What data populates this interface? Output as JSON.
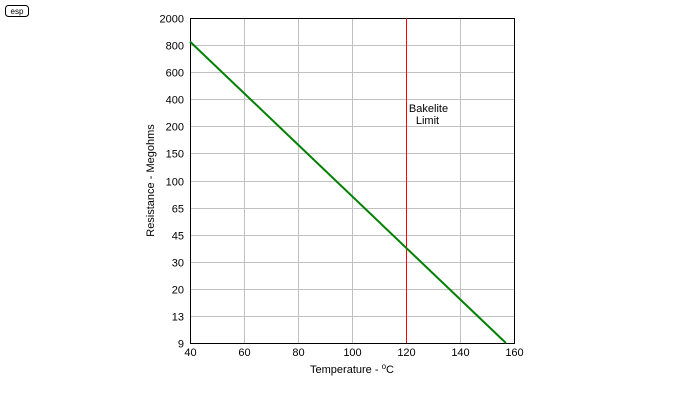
{
  "logo_text": "esp",
  "chart_data": {
    "type": "line",
    "title": "",
    "xlabel": "Temperature - ",
    "xlabel_unit_sup": "o",
    "xlabel_unit": "C",
    "ylabel": "Resistance - Megohms",
    "x_ticks": [
      "40",
      "60",
      "80",
      "100",
      "120",
      "140",
      "160"
    ],
    "y_ticks": [
      "9",
      "13",
      "20",
      "30",
      "45",
      "65",
      "100",
      "150",
      "200",
      "400",
      "600",
      "800",
      "2000"
    ],
    "xlim": [
      40,
      160
    ],
    "y_scale": "categorical-ticks",
    "grid": true,
    "series": [
      {
        "color": "#008000",
        "points": [
          [
            40,
            900
          ],
          [
            157,
            9
          ]
        ]
      }
    ],
    "markers": [
      {
        "type": "vertical-line",
        "x": 120,
        "color": "#ff0000",
        "label_line1": "Bakelite",
        "label_line2": "Limit"
      }
    ]
  }
}
